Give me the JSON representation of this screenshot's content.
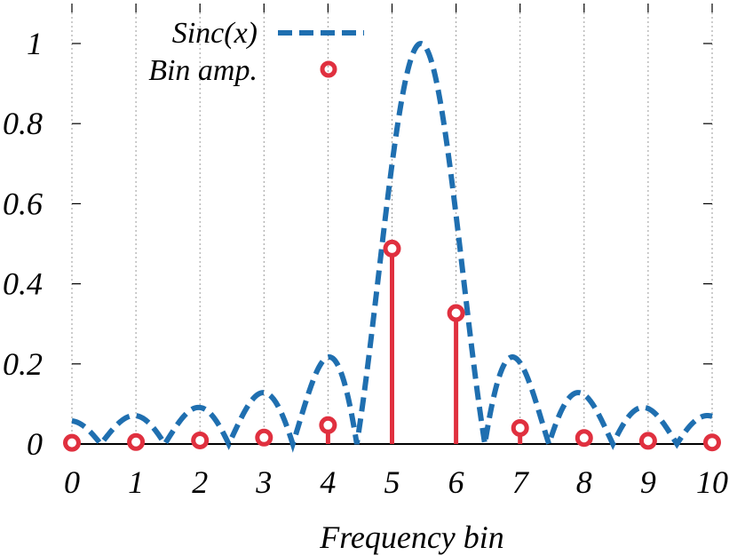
{
  "chart_data": {
    "type": "line",
    "title": "",
    "xlabel": "Frequency bin",
    "ylabel": "",
    "xlim": [
      0,
      10
    ],
    "ylim": [
      0,
      1.05
    ],
    "x_ticks": [
      "0",
      "1",
      "2",
      "3",
      "4",
      "5",
      "6",
      "7",
      "8",
      "9",
      "10"
    ],
    "y_ticks": [
      "0",
      "0.2",
      "0.4",
      "0.6",
      "0.8",
      "1"
    ],
    "grid": "vertical dotted",
    "legend_position": "top-left",
    "series": [
      {
        "name": "Sinc(x)",
        "style": "dashed line",
        "color": "#1f6fb0",
        "center": 5.45,
        "peak": 1.0
      },
      {
        "name": "Bin amp.",
        "style": "stem with circle markers",
        "color": "#e0303f",
        "x": [
          0,
          1,
          2,
          3,
          4,
          5,
          6,
          7,
          8,
          9,
          10
        ],
        "values": [
          0.003,
          0.005,
          0.009,
          0.016,
          0.047,
          0.488,
          0.327,
          0.04,
          0.015,
          0.008,
          0.004
        ]
      }
    ]
  }
}
